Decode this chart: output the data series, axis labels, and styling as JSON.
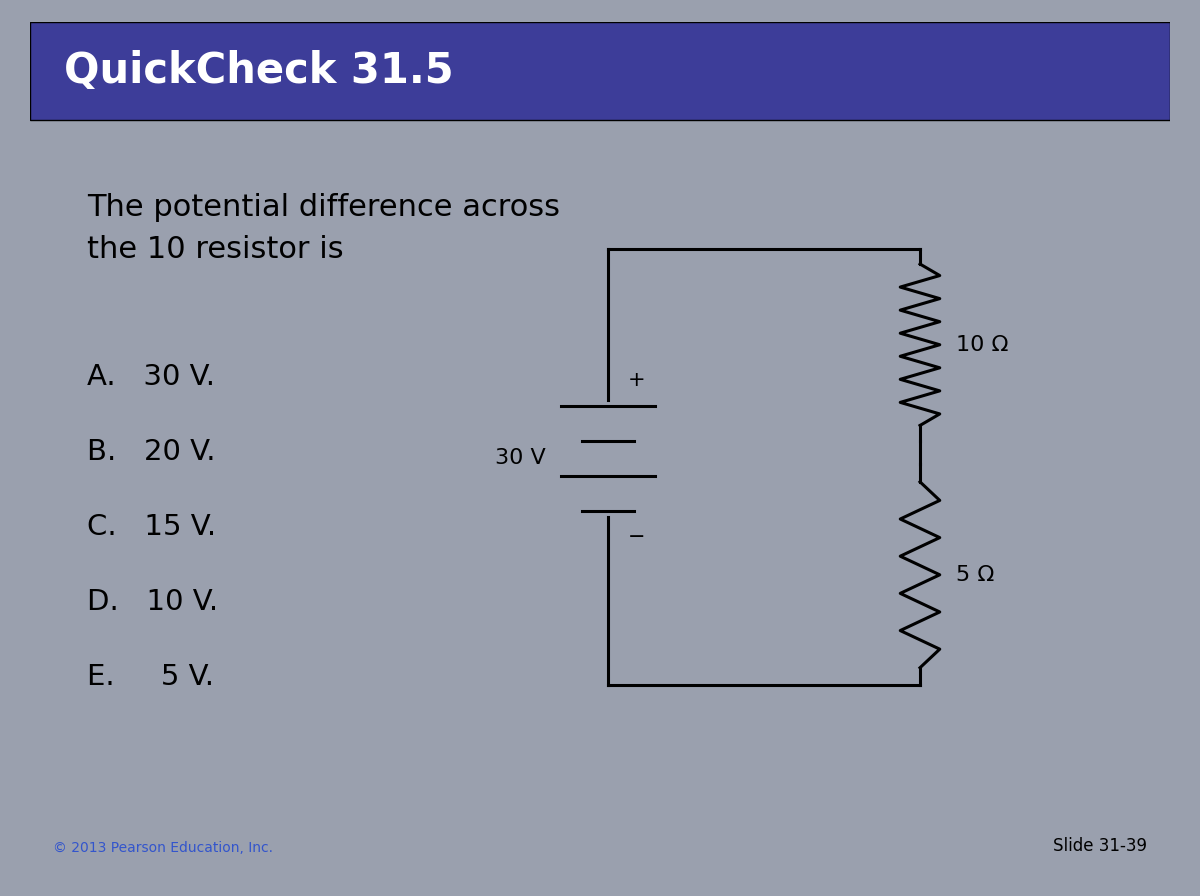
{
  "title": "QuickCheck 31.5",
  "title_bg": "#3d3d99",
  "title_fg": "#ffffff",
  "slide_bg": "#9aa0ae",
  "content_bg": "#ffffff",
  "question": "The potential difference across\nthe 10 resistor is",
  "options": [
    "A.   30 V.",
    "B.   20 V.",
    "C.   15 V.",
    "D.   10 V.",
    "E.     5 V."
  ],
  "footer_left": "© 2013 Pearson Education, Inc.",
  "footer_right": "Slide 31-39",
  "circuit": {
    "battery_voltage": "30 V",
    "resistor1": "10 Ω",
    "resistor2": "5 Ω"
  }
}
